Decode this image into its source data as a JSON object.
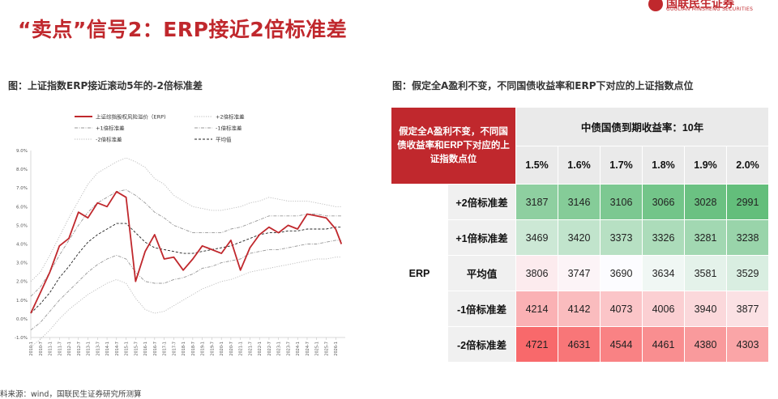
{
  "slide": {
    "title": "“卖点”信号2：ERP接近2倍标准差",
    "logo_cn": "国联民生证券",
    "logo_en": "GUOLIAN MINSHENG SECURITIES",
    "source": "料来源：wind，国联民生证券研究所测算"
  },
  "left_panel": {
    "title": "图：上证指数ERP接近滚动5年的-2倍标准差"
  },
  "right_panel": {
    "title": "图：假定全A盈利不变，不同国债收益率和ERP下对应的上证指数点位"
  },
  "chart_data": {
    "type": "line",
    "title": "",
    "ylim": [
      -1.0,
      9.0
    ],
    "yticks": [
      "9.0%",
      "8.0%",
      "7.0%",
      "6.0%",
      "5.0%",
      "4.0%",
      "3.0%",
      "2.0%",
      "1.0%",
      "0.0%",
      "-1.0%"
    ],
    "xlim": [
      2010.0,
      2026.5
    ],
    "xticks": [
      "2010-1",
      "2010-7",
      "2011-1",
      "2011-7",
      "2012-1",
      "2012-7",
      "2013-1",
      "2013-7",
      "2014-1",
      "2014-7",
      "2015-1",
      "2015-7",
      "2016-1",
      "2016-7",
      "2017-1",
      "2017-7",
      "2018-1",
      "2018-7",
      "2019-1",
      "2019-7",
      "2020-1",
      "2020-7",
      "2021-1",
      "2021-7",
      "2022-1",
      "2022-7",
      "2023-1",
      "2023-7",
      "2024-1",
      "2024-7",
      "2025-1",
      "2025-7",
      "2026-1"
    ],
    "legend": {
      "placement": "top"
    },
    "x": [
      2010.0,
      2010.5,
      2011.0,
      2011.5,
      2012.0,
      2012.5,
      2013.0,
      2013.5,
      2014.0,
      2014.5,
      2015.0,
      2015.5,
      2016.0,
      2016.5,
      2017.0,
      2017.5,
      2018.0,
      2018.5,
      2019.0,
      2019.5,
      2020.0,
      2020.5,
      2021.0,
      2021.5,
      2022.0,
      2022.5,
      2023.0,
      2023.5,
      2024.0,
      2024.5,
      2025.0,
      2025.5,
      2026.0,
      2026.3
    ],
    "series": [
      {
        "name": "上证综指股权风险溢价（ERP)",
        "style": "solid",
        "color": "#c0282d",
        "values": [
          0.3,
          1.4,
          2.5,
          3.9,
          4.3,
          5.7,
          5.4,
          6.2,
          6.0,
          6.8,
          6.5,
          2.0,
          3.6,
          4.5,
          3.2,
          3.3,
          2.6,
          3.2,
          3.9,
          3.7,
          3.5,
          4.2,
          2.6,
          3.8,
          4.5,
          4.9,
          4.6,
          5.0,
          4.8,
          5.6,
          5.5,
          5.4,
          4.8,
          4.0
        ]
      },
      {
        "name": "+2倍标准差",
        "style": "dotted",
        "color": "#bbbbbb",
        "values": [
          2.0,
          2.5,
          3.4,
          4.4,
          5.4,
          6.3,
          7.2,
          7.8,
          8.1,
          8.4,
          8.6,
          8.4,
          8.1,
          7.5,
          7.2,
          6.6,
          6.3,
          6.0,
          5.9,
          5.8,
          5.8,
          5.9,
          6.0,
          6.2,
          6.3,
          6.5,
          6.4,
          6.3,
          6.3,
          6.3,
          6.2,
          6.1,
          6.0,
          6.0
        ]
      },
      {
        "name": "+1倍标准差",
        "style": "dashdot",
        "color": "#999999",
        "values": [
          1.2,
          1.7,
          2.5,
          3.4,
          4.2,
          5.0,
          5.7,
          6.2,
          6.5,
          6.8,
          6.9,
          6.6,
          6.2,
          5.7,
          5.4,
          5.0,
          4.8,
          4.6,
          4.6,
          4.6,
          4.6,
          4.8,
          4.9,
          5.1,
          5.3,
          5.5,
          5.5,
          5.5,
          5.5,
          5.6,
          5.6,
          5.5,
          5.5,
          5.5
        ]
      },
      {
        "name": "-1倍标准差",
        "style": "dashdot",
        "color": "#999999",
        "values": [
          -0.6,
          -0.2,
          0.4,
          1.0,
          1.5,
          2.0,
          2.5,
          2.9,
          3.2,
          3.4,
          3.2,
          2.5,
          2.0,
          1.9,
          1.9,
          2.1,
          2.2,
          2.4,
          2.7,
          2.8,
          3.0,
          3.1,
          3.2,
          3.5,
          3.6,
          3.7,
          3.7,
          3.8,
          3.9,
          4.0,
          4.0,
          4.1,
          4.2,
          4.2
        ]
      },
      {
        "name": "-2倍标准差",
        "style": "dotted",
        "color": "#bbbbbb",
        "values": [
          -1.5,
          -1.1,
          -0.6,
          0.0,
          0.5,
          0.9,
          1.3,
          1.6,
          1.9,
          2.1,
          1.9,
          1.1,
          0.5,
          0.3,
          0.4,
          0.7,
          1.0,
          1.3,
          1.6,
          1.8,
          2.0,
          2.1,
          2.3,
          2.5,
          2.6,
          2.7,
          2.8,
          2.9,
          3.0,
          3.1,
          3.2,
          3.2,
          3.3,
          3.3
        ]
      },
      {
        "name": "平均值",
        "style": "dashed",
        "color": "#222222",
        "values": [
          0.3,
          0.8,
          1.4,
          2.2,
          2.8,
          3.5,
          4.1,
          4.5,
          4.8,
          5.1,
          5.1,
          4.6,
          4.1,
          3.8,
          3.7,
          3.6,
          3.5,
          3.5,
          3.6,
          3.7,
          3.8,
          3.9,
          4.1,
          4.3,
          4.5,
          4.6,
          4.6,
          4.7,
          4.7,
          4.8,
          4.8,
          4.8,
          4.9,
          4.9
        ]
      }
    ]
  },
  "table": {
    "corner_label": "假定全A盈利不变，不同国债收益率和ERP下对应的上证指数点位",
    "header_title": "中债国债到期收益率：10年",
    "yields": [
      "1.5%",
      "1.6%",
      "1.7%",
      "1.8%",
      "1.9%",
      "2.0%"
    ],
    "group_label": "ERP",
    "rows": [
      {
        "label": "+2倍标准差",
        "values": [
          "3187",
          "3146",
          "3106",
          "3066",
          "3028",
          "2991"
        ]
      },
      {
        "label": "+1倍标准差",
        "values": [
          "3469",
          "3420",
          "3373",
          "3326",
          "3281",
          "3238"
        ]
      },
      {
        "label": "平均值",
        "values": [
          "3806",
          "3747",
          "3690",
          "3634",
          "3581",
          "3529"
        ]
      },
      {
        "label": "-1倍标准差",
        "values": [
          "4214",
          "4142",
          "4073",
          "4006",
          "3940",
          "3877"
        ]
      },
      {
        "label": "-2倍标准差",
        "values": [
          "4721",
          "4631",
          "4544",
          "4461",
          "4380",
          "4303"
        ]
      }
    ],
    "colors": {
      "corner": "#c0282d",
      "high_green": "#63be7b",
      "low_red": "#f8696b",
      "mid_white": "#fcfcff"
    }
  }
}
